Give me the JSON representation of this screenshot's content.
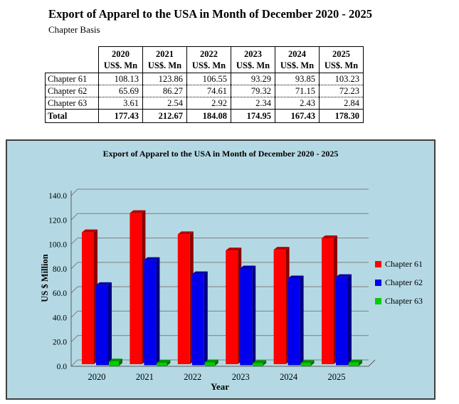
{
  "page": {
    "title": "Export of Apparel to the USA in Month of December 2020 - 2025",
    "subtitle": "Chapter Basis"
  },
  "table": {
    "unit_label": "US$. Mn",
    "years": [
      "2020",
      "2021",
      "2022",
      "2023",
      "2024",
      "2025"
    ],
    "rows": [
      {
        "label": "Chapter 61",
        "values": [
          "108.13",
          "123.86",
          "106.55",
          "93.29",
          "93.85",
          "103.23"
        ]
      },
      {
        "label": "Chapter 62",
        "values": [
          "65.69",
          "86.27",
          "74.61",
          "79.32",
          "71.15",
          "72.23"
        ]
      },
      {
        "label": "Chapter 63",
        "values": [
          "3.61",
          "2.54",
          "2.92",
          "2.34",
          "2.43",
          "2.84"
        ]
      }
    ],
    "total": {
      "label": "Total",
      "values": [
        "177.43",
        "212.67",
        "184.08",
        "174.95",
        "167.43",
        "178.30"
      ]
    }
  },
  "chart_data": {
    "type": "bar",
    "style": "3d-column",
    "title": "Export of Apparel to the USA in Month of December 2020 - 2025",
    "xlabel": "Year",
    "ylabel": "US $ Million",
    "categories": [
      "2020",
      "2021",
      "2022",
      "2023",
      "2024",
      "2025"
    ],
    "series": [
      {
        "name": "Chapter 61",
        "color": "#FF0000",
        "values": [
          108.13,
          123.86,
          106.55,
          93.29,
          93.85,
          103.23
        ]
      },
      {
        "name": "Chapter 62",
        "color": "#0000EE",
        "values": [
          65.69,
          86.27,
          74.61,
          79.32,
          71.15,
          72.23
        ]
      },
      {
        "name": "Chapter 63",
        "color": "#00CC00",
        "values": [
          3.61,
          2.54,
          2.92,
          2.34,
          2.43,
          2.84
        ]
      }
    ],
    "ylim": [
      0,
      140
    ],
    "ytick_step": 20,
    "grid": true,
    "legend_position": "right",
    "background_color": "#B4D9E4",
    "gridline_color": "#7F7F7F",
    "axis_color": "#5A5A5A"
  }
}
